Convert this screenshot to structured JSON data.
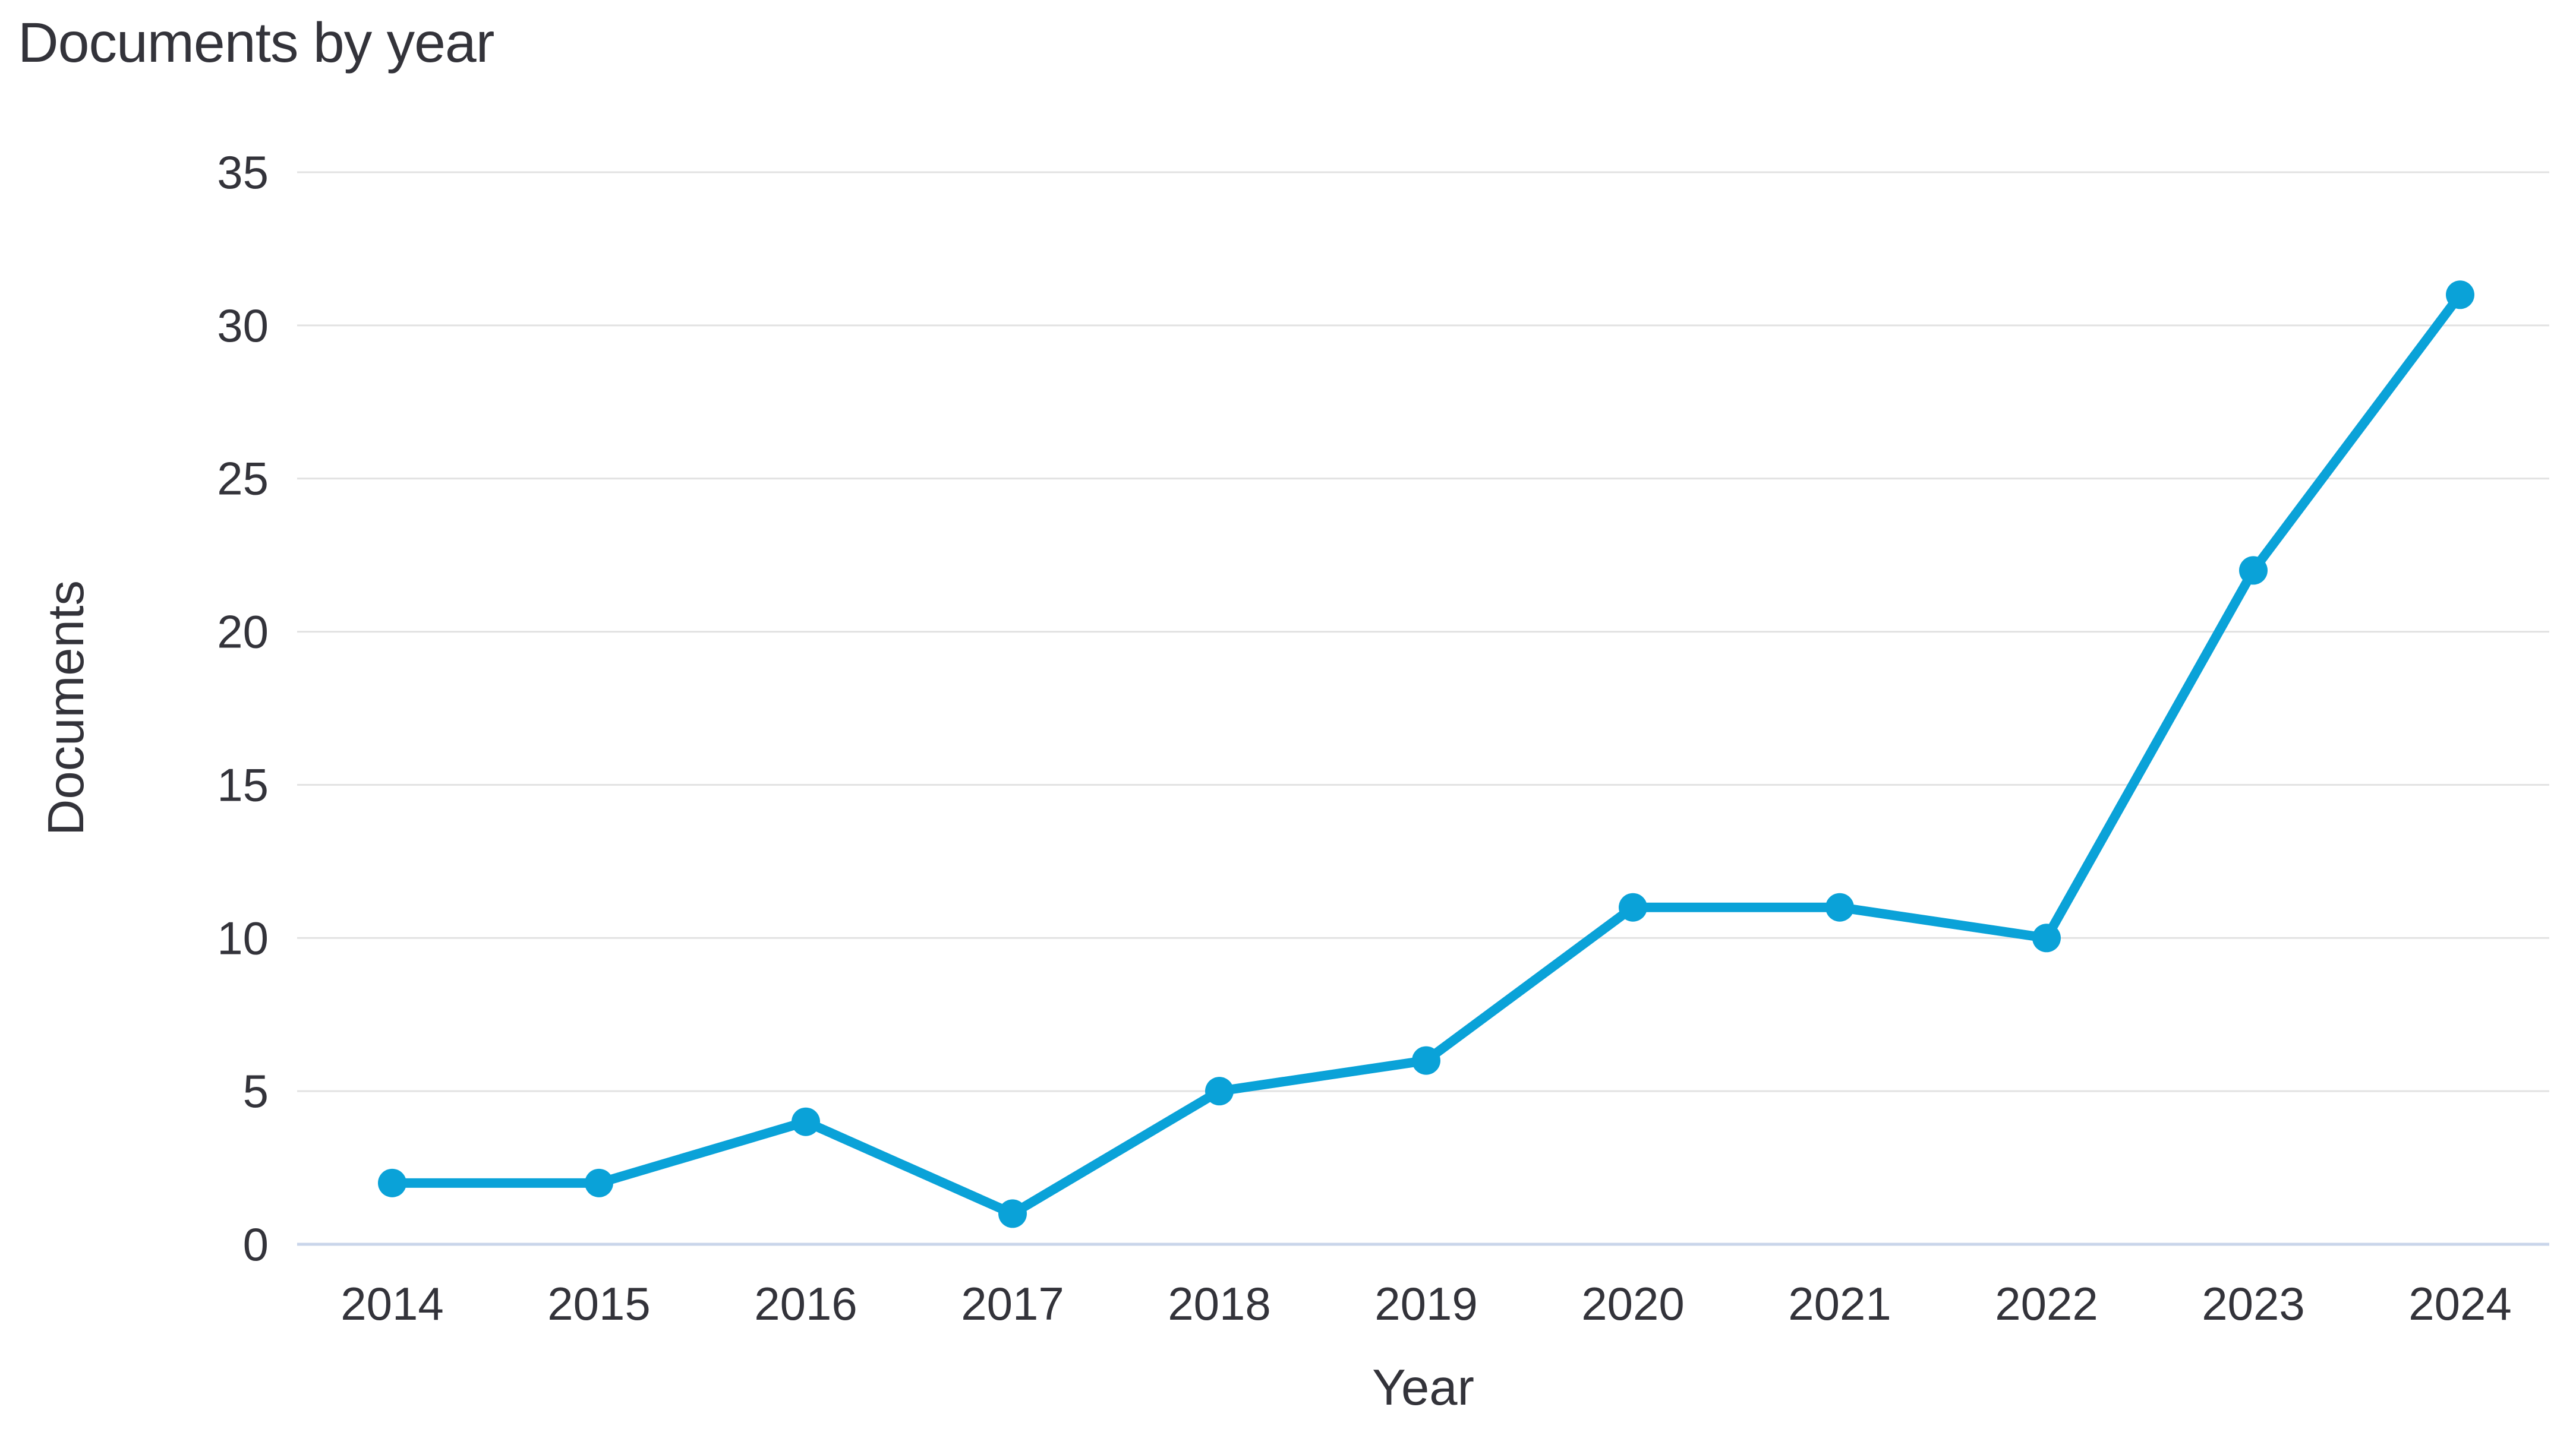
{
  "chart": {
    "title": "Documents by year",
    "xlabel": "Year",
    "ylabel": "Documents"
  },
  "chart_data": {
    "type": "line",
    "title": "Documents by year",
    "xlabel": "Year",
    "ylabel": "Documents",
    "categories": [
      "2014",
      "2015",
      "2016",
      "2017",
      "2018",
      "2019",
      "2020",
      "2021",
      "2022",
      "2023",
      "2024"
    ],
    "series": [
      {
        "name": "Documents",
        "values": [
          2,
          2,
          4,
          1,
          5,
          6,
          11,
          11,
          10,
          22,
          31
        ]
      }
    ],
    "ylim": [
      0,
      35
    ],
    "yticks": [
      0,
      5,
      10,
      15,
      20,
      25,
      30,
      35
    ],
    "grid": true,
    "legend_visible": false,
    "colors": {
      "line": "#0aa2d8",
      "marker": "#0aa2d8",
      "gridline": "#e2e2e2",
      "zero_axis_line": "#c9d5ea",
      "text": "#33333a"
    }
  }
}
